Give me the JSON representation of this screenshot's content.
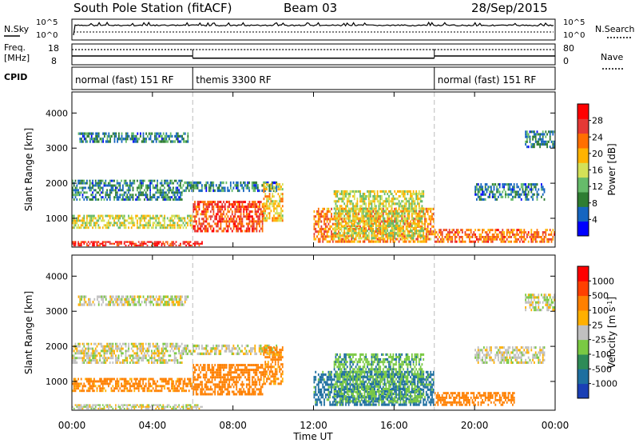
{
  "header": {
    "station": "South Pole Station (fitACF)",
    "beam": "Beam 03",
    "date": "28/Sep/2015"
  },
  "noise_panel": {
    "left_label": "N.Sky",
    "right_label": "N.Search",
    "left_ticks": [
      "10^5",
      "10^0"
    ],
    "right_ticks": [
      "10^5",
      "10^0"
    ]
  },
  "freq_panel": {
    "left_label_1": "Freq.",
    "left_label_2": "[MHz]",
    "right_label": "Nave",
    "left_ticks": [
      "18",
      "8"
    ],
    "right_ticks": [
      "80",
      "0"
    ],
    "freq_segments": [
      {
        "start": 0,
        "end": 6,
        "value": 12
      },
      {
        "start": 6,
        "end": 18,
        "value": 10.6
      },
      {
        "start": 18,
        "end": 24,
        "value": 12
      }
    ]
  },
  "cpid_panel": {
    "label": "CPID",
    "segments": [
      {
        "start": 0,
        "end": 6,
        "text": "normal (fast) 151 RF"
      },
      {
        "start": 6,
        "end": 18,
        "text": "themis 3300 RF"
      },
      {
        "start": 18,
        "end": 24,
        "text": "normal (fast) 151 RF"
      }
    ]
  },
  "x_axis": {
    "label": "Time UT",
    "ticks": [
      "00:00",
      "04:00",
      "08:00",
      "12:00",
      "16:00",
      "20:00",
      "00:00"
    ],
    "tick_hours": [
      0,
      4,
      8,
      12,
      16,
      20,
      24
    ],
    "range": [
      0,
      24
    ],
    "mode_change_hours": [
      6,
      18
    ]
  },
  "power_panel": {
    "ylabel": "Slant Range [km]",
    "yticks": [
      "1000",
      "2000",
      "3000",
      "4000"
    ],
    "ytick_values": [
      1000,
      2000,
      3000,
      4000
    ],
    "ylim": [
      180,
      4600
    ],
    "colorbar_label": "Power [dB]",
    "colorbar_ticks": [
      "4",
      "8",
      "12",
      "16",
      "20",
      "24",
      "28"
    ],
    "colorbar_colors": [
      "#0000ff",
      "#1565c0",
      "#2e7d32",
      "#66bb6a",
      "#d4e157",
      "#ffb300",
      "#ff6f00",
      "#e53935",
      "#ff0000"
    ]
  },
  "velocity_panel": {
    "ylabel": "Slant Range [km]",
    "yticks": [
      "1000",
      "2000",
      "3000",
      "4000"
    ],
    "ytick_values": [
      1000,
      2000,
      3000,
      4000
    ],
    "ylim": [
      180,
      4600
    ],
    "colorbar_label": "Velocity [m s",
    "colorbar_label_sup": "-1",
    "colorbar_label_end": "]",
    "colorbar_ticks": [
      "1000",
      "500",
      "100",
      "25",
      "-25",
      "-100",
      "-500",
      "-1000"
    ],
    "colorbar_colors": [
      "#1a3fb5",
      "#1e6fa0",
      "#2e8b57",
      "#7ac943",
      "#c0c0c0",
      "#ffb000",
      "#ff8000",
      "#ff4000",
      "#ff0000"
    ]
  },
  "chart_data": {
    "type": "heatmap",
    "title": "South Pole Station (fitACF) Beam 03 28/Sep/2015",
    "xlabel": "Time UT",
    "ylabel": "Slant Range [km]",
    "xlim": [
      0,
      24
    ],
    "ylim": [
      180,
      4600
    ],
    "series": [
      {
        "name": "Power [dB]",
        "regions": [
          {
            "t0": 0.3,
            "t1": 5.8,
            "r0": 3150,
            "r1": 3450,
            "value": 8
          },
          {
            "t0": 0.0,
            "t1": 5.5,
            "r0": 1500,
            "r1": 2100,
            "value": 8
          },
          {
            "t0": 5.5,
            "t1": 10.2,
            "r0": 1750,
            "r1": 2050,
            "value": 8
          },
          {
            "t0": 0.0,
            "t1": 6.0,
            "r0": 700,
            "r1": 1100,
            "value": 16
          },
          {
            "t0": 6.0,
            "t1": 9.5,
            "r0": 600,
            "r1": 1500,
            "value": 26
          },
          {
            "t0": 9.5,
            "t1": 10.5,
            "r0": 900,
            "r1": 2000,
            "value": 18
          },
          {
            "t0": 12.0,
            "t1": 18.0,
            "r0": 300,
            "r1": 1300,
            "value": 22
          },
          {
            "t0": 13.0,
            "t1": 17.5,
            "r0": 400,
            "r1": 1800,
            "value": 16
          },
          {
            "t0": 18.0,
            "t1": 24.0,
            "r0": 300,
            "r1": 700,
            "value": 24
          },
          {
            "t0": 20.0,
            "t1": 23.5,
            "r0": 1500,
            "r1": 2000,
            "value": 8
          },
          {
            "t0": 22.5,
            "t1": 24.0,
            "r0": 3000,
            "r1": 3500,
            "value": 8
          },
          {
            "t0": 0.0,
            "t1": 6.5,
            "r0": 200,
            "r1": 350,
            "value": 28
          }
        ]
      },
      {
        "name": "Velocity [m s-1]",
        "regions": [
          {
            "t0": 0.3,
            "t1": 5.8,
            "r0": 3150,
            "r1": 3450,
            "value": 0
          },
          {
            "t0": 0.0,
            "t1": 5.5,
            "r0": 1500,
            "r1": 2100,
            "value": 0
          },
          {
            "t0": 5.5,
            "t1": 10.2,
            "r0": 1750,
            "r1": 2050,
            "value": 0
          },
          {
            "t0": 0.0,
            "t1": 6.0,
            "r0": 700,
            "r1": 1100,
            "value": -150
          },
          {
            "t0": 6.0,
            "t1": 9.5,
            "r0": 600,
            "r1": 1500,
            "value": -200
          },
          {
            "t0": 9.5,
            "t1": 10.5,
            "r0": 900,
            "r1": 2000,
            "value": -150
          },
          {
            "t0": 12.0,
            "t1": 18.0,
            "r0": 300,
            "r1": 1300,
            "value": 150
          },
          {
            "t0": 13.0,
            "t1": 17.5,
            "r0": 400,
            "r1": 1800,
            "value": 80
          },
          {
            "t0": 18.0,
            "t1": 22.0,
            "r0": 300,
            "r1": 700,
            "value": -200
          },
          {
            "t0": 20.0,
            "t1": 23.5,
            "r0": 1500,
            "r1": 2000,
            "value": 0
          },
          {
            "t0": 22.5,
            "t1": 24.0,
            "r0": 3000,
            "r1": 3500,
            "value": 0
          },
          {
            "t0": 0.0,
            "t1": 6.5,
            "r0": 200,
            "r1": 350,
            "value": 0
          }
        ]
      }
    ]
  }
}
